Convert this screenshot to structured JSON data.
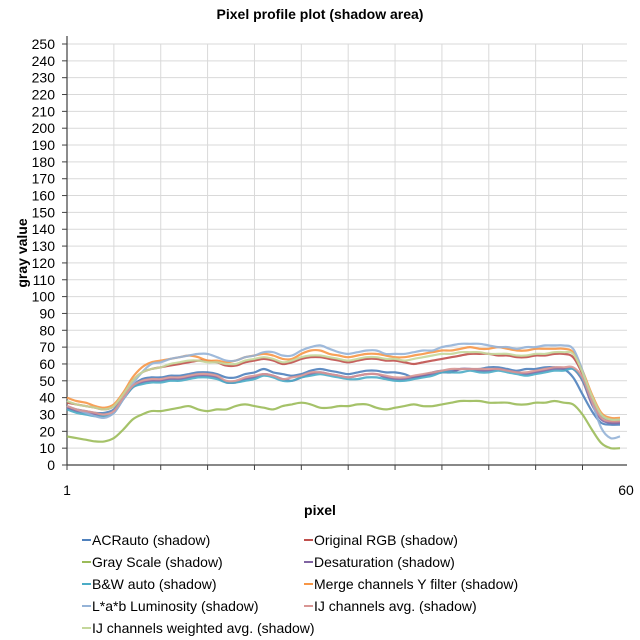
{
  "chart_data": {
    "type": "line",
    "title": "Pixel profile plot (shadow area)",
    "xlabel": "pixel",
    "ylabel": "gray value",
    "xlim": [
      1,
      60
    ],
    "ylim": [
      0,
      250
    ],
    "x_tick_labels": [
      "1",
      "60"
    ],
    "y_ticks": [
      0,
      10,
      20,
      30,
      40,
      50,
      60,
      70,
      80,
      90,
      100,
      110,
      120,
      130,
      140,
      150,
      160,
      170,
      180,
      190,
      200,
      210,
      220,
      230,
      240,
      250
    ],
    "grid": true,
    "legend_position": "bottom",
    "x": [
      1,
      2,
      3,
      4,
      5,
      6,
      7,
      8,
      9,
      10,
      11,
      12,
      13,
      14,
      15,
      16,
      17,
      18,
      19,
      20,
      21,
      22,
      23,
      24,
      25,
      26,
      27,
      28,
      29,
      30,
      31,
      32,
      33,
      34,
      35,
      36,
      37,
      38,
      39,
      40,
      41,
      42,
      43,
      44,
      45,
      46,
      47,
      48,
      49,
      50,
      51,
      52,
      53,
      54,
      55,
      56,
      57,
      58,
      59,
      60
    ],
    "series": [
      {
        "name": "ACRauto (shadow)",
        "color": "#4f81bd",
        "values": [
          34,
          33,
          32,
          31,
          31,
          33,
          40,
          47,
          51,
          52,
          52,
          53,
          53,
          54,
          55,
          55,
          54,
          52,
          52,
          54,
          55,
          57,
          55,
          54,
          53,
          54,
          56,
          57,
          56,
          55,
          54,
          55,
          56,
          56,
          55,
          55,
          54,
          52,
          53,
          55,
          56,
          56,
          57,
          57,
          57,
          58,
          58,
          57,
          56,
          57,
          57,
          58,
          58,
          57,
          52,
          42,
          32,
          25,
          24,
          24
        ]
      },
      {
        "name": "Original RGB (shadow)",
        "color": "#c0504d",
        "values": [
          37,
          36,
          35,
          34,
          33,
          35,
          42,
          50,
          55,
          57,
          58,
          59,
          60,
          61,
          62,
          62,
          61,
          59,
          59,
          61,
          62,
          63,
          62,
          60,
          61,
          63,
          64,
          64,
          63,
          62,
          61,
          62,
          63,
          63,
          62,
          62,
          61,
          60,
          61,
          62,
          63,
          64,
          65,
          66,
          66,
          66,
          65,
          65,
          64,
          64,
          65,
          65,
          66,
          66,
          64,
          54,
          40,
          30,
          26,
          26
        ]
      },
      {
        "name": "Gray Scale (shadow)",
        "color": "#9bbb59",
        "values": [
          17,
          16,
          15,
          14,
          14,
          16,
          21,
          27,
          30,
          32,
          32,
          33,
          34,
          35,
          33,
          32,
          33,
          33,
          35,
          36,
          35,
          34,
          33,
          35,
          36,
          37,
          36,
          34,
          34,
          35,
          35,
          36,
          36,
          34,
          33,
          34,
          35,
          36,
          35,
          35,
          36,
          37,
          38,
          38,
          38,
          37,
          37,
          37,
          36,
          36,
          37,
          37,
          38,
          37,
          36,
          30,
          21,
          13,
          10,
          10
        ]
      },
      {
        "name": "Desaturation (shadow)",
        "color": "#8064a2",
        "values": [
          34,
          32,
          31,
          30,
          29,
          31,
          39,
          46,
          49,
          50,
          50,
          51,
          51,
          52,
          53,
          53,
          52,
          49,
          49,
          51,
          52,
          54,
          53,
          51,
          50,
          52,
          54,
          55,
          54,
          53,
          52,
          53,
          54,
          54,
          52,
          51,
          51,
          52,
          53,
          54,
          55,
          55,
          57,
          57,
          56,
          56,
          57,
          56,
          55,
          54,
          55,
          56,
          57,
          57,
          57,
          50,
          36,
          27,
          25,
          25
        ]
      },
      {
        "name": "B&W auto (shadow)",
        "color": "#4bacc6",
        "values": [
          33,
          31,
          30,
          29,
          29,
          31,
          39,
          46,
          48,
          49,
          49,
          50,
          50,
          51,
          52,
          52,
          51,
          49,
          49,
          50,
          51,
          53,
          52,
          50,
          50,
          52,
          53,
          54,
          53,
          52,
          51,
          51,
          52,
          52,
          51,
          50,
          50,
          51,
          52,
          53,
          55,
          55,
          55,
          56,
          55,
          55,
          56,
          55,
          54,
          53,
          54,
          55,
          56,
          56,
          57,
          51,
          38,
          29,
          27,
          27
        ]
      },
      {
        "name": "Merge channels Y filter (shadow)",
        "color": "#f79646",
        "values": [
          40,
          38,
          37,
          35,
          34,
          36,
          43,
          52,
          58,
          61,
          62,
          63,
          64,
          65,
          64,
          62,
          62,
          61,
          62,
          64,
          65,
          66,
          65,
          63,
          63,
          66,
          68,
          68,
          66,
          65,
          64,
          65,
          66,
          66,
          65,
          64,
          64,
          65,
          66,
          67,
          68,
          68,
          69,
          70,
          69,
          69,
          70,
          69,
          68,
          68,
          69,
          69,
          69,
          69,
          67,
          56,
          42,
          31,
          28,
          28
        ]
      },
      {
        "name": "L*a*b Luminosity (shadow)",
        "color": "#95b3d7",
        "values": [
          35,
          33,
          31,
          29,
          28,
          31,
          39,
          48,
          55,
          60,
          61,
          63,
          64,
          65,
          66,
          66,
          64,
          62,
          62,
          64,
          65,
          67,
          67,
          65,
          65,
          68,
          70,
          71,
          69,
          67,
          66,
          67,
          68,
          68,
          66,
          66,
          66,
          67,
          68,
          68,
          70,
          71,
          72,
          72,
          72,
          71,
          70,
          70,
          69,
          70,
          70,
          71,
          71,
          71,
          69,
          56,
          38,
          22,
          16,
          17
        ]
      },
      {
        "name": "IJ channels avg. (shadow)",
        "color": "#d99694",
        "values": [
          35,
          33,
          32,
          31,
          30,
          32,
          40,
          47,
          50,
          51,
          51,
          52,
          52,
          53,
          54,
          54,
          53,
          50,
          50,
          52,
          53,
          54,
          53,
          51,
          52,
          53,
          55,
          55,
          54,
          53,
          52,
          53,
          54,
          54,
          53,
          52,
          52,
          53,
          54,
          55,
          56,
          57,
          57,
          57,
          57,
          57,
          57,
          56,
          55,
          55,
          56,
          57,
          58,
          58,
          58,
          52,
          38,
          28,
          26,
          26
        ]
      },
      {
        "name": "IJ channels weighted avg. (shadow)",
        "color": "#c4d79b",
        "values": [
          38,
          36,
          35,
          34,
          33,
          35,
          42,
          50,
          55,
          57,
          58,
          60,
          61,
          62,
          62,
          61,
          61,
          60,
          60,
          62,
          63,
          64,
          63,
          61,
          62,
          64,
          65,
          65,
          64,
          63,
          62,
          63,
          64,
          64,
          63,
          63,
          62,
          63,
          64,
          65,
          66,
          66,
          67,
          67,
          67,
          66,
          66,
          66,
          65,
          65,
          66,
          66,
          67,
          67,
          66,
          55,
          41,
          30,
          27,
          27
        ]
      }
    ]
  },
  "legend": {
    "items": [
      {
        "label": "ACRauto (shadow)",
        "color": "#4f81bd"
      },
      {
        "label": "Original RGB (shadow)",
        "color": "#c0504d"
      },
      {
        "label": "Gray Scale (shadow)",
        "color": "#9bbb59"
      },
      {
        "label": "Desaturation (shadow)",
        "color": "#8064a2"
      },
      {
        "label": "B&W auto (shadow)",
        "color": "#4bacc6"
      },
      {
        "label": "Merge channels Y filter (shadow)",
        "color": "#f79646"
      },
      {
        "label": "L*a*b Luminosity (shadow)",
        "color": "#95b3d7"
      },
      {
        "label": "IJ channels avg. (shadow)",
        "color": "#d99694"
      },
      {
        "label": "IJ channels weighted avg. (shadow)",
        "color": "#c4d79b"
      }
    ]
  }
}
